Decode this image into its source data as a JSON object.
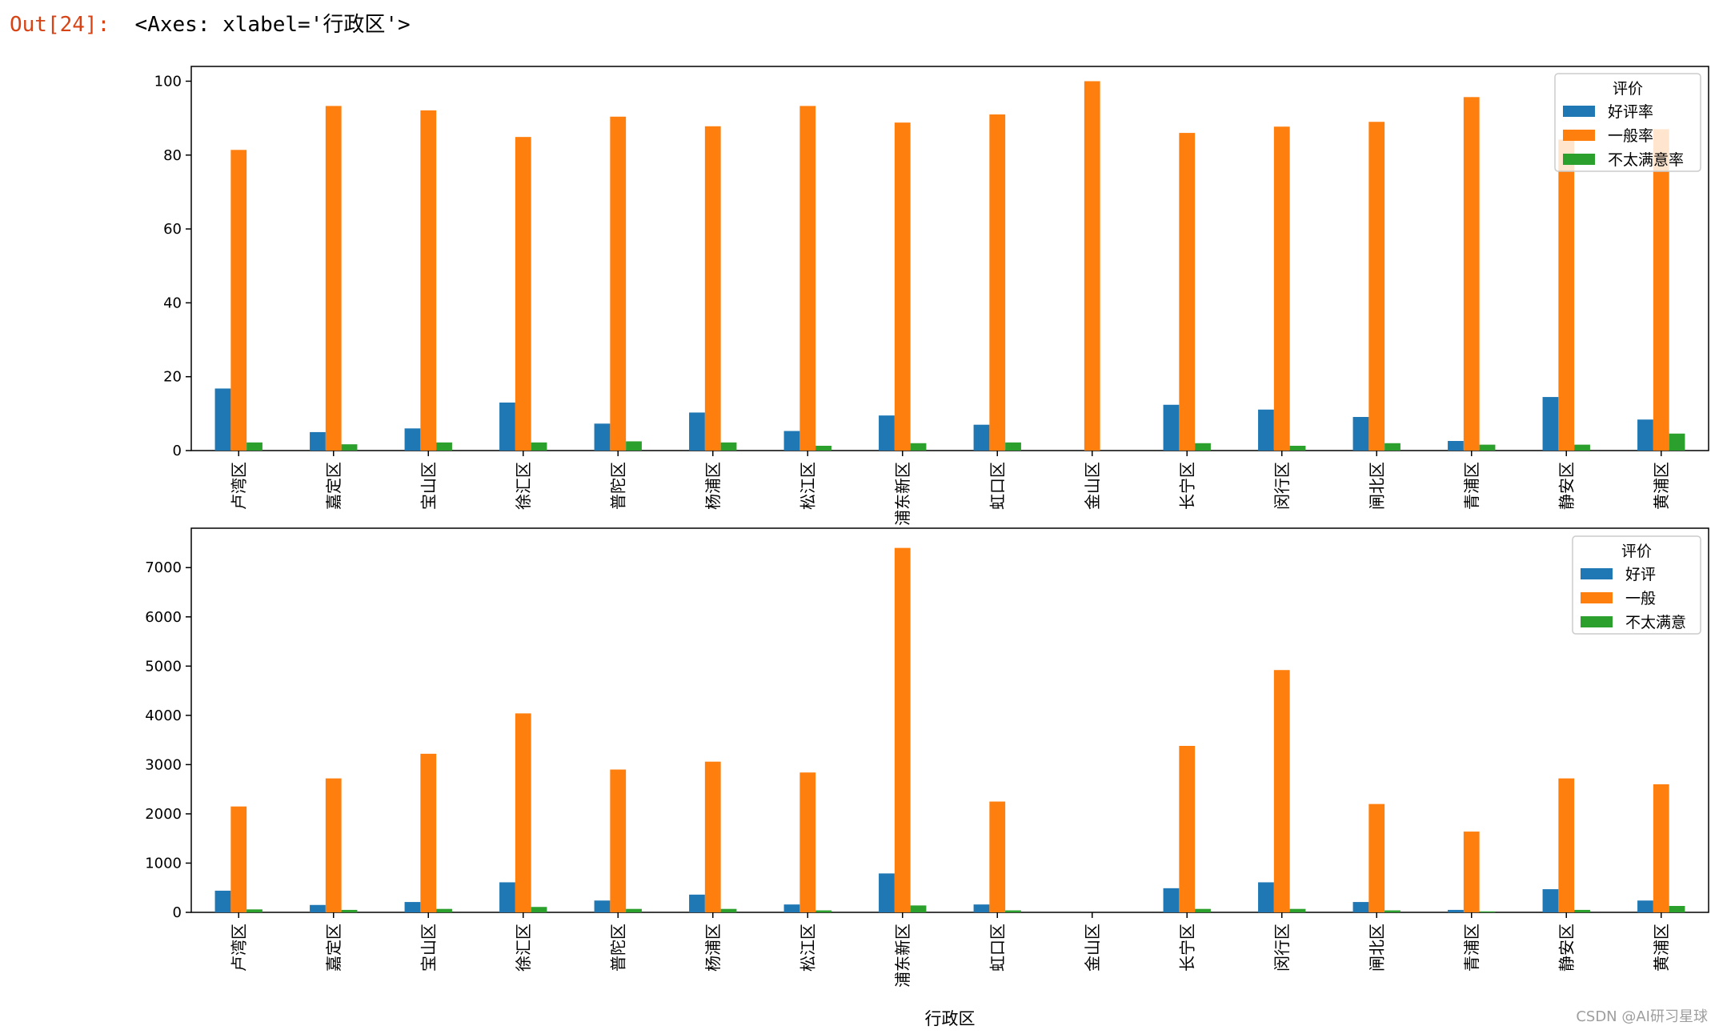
{
  "output": {
    "prompt": "Out[24]:",
    "text": "<Axes: xlabel='行政区'>"
  },
  "watermark": "CSDN @AI研习星球",
  "colors": {
    "series1": "#1f77b4",
    "series2": "#ff7f0e",
    "series3": "#2ca02c"
  },
  "chart_data": [
    {
      "type": "bar",
      "categories": [
        "卢湾区",
        "嘉定区",
        "宝山区",
        "徐汇区",
        "普陀区",
        "杨浦区",
        "松江区",
        "浦东新区",
        "虹口区",
        "金山区",
        "长宁区",
        "闵行区",
        "闸北区",
        "青浦区",
        "静安区",
        "黄浦区"
      ],
      "legend_title": "评价",
      "legend_position": "upper right",
      "ylim": [
        0,
        104
      ],
      "yticks": [
        0,
        20,
        40,
        60,
        80,
        100
      ],
      "series": [
        {
          "name": "好评率",
          "values": [
            16.8,
            5.0,
            6.0,
            13.0,
            7.3,
            10.3,
            5.3,
            9.5,
            7.0,
            0.0,
            12.4,
            11.1,
            9.1,
            2.6,
            14.5,
            8.4
          ]
        },
        {
          "name": "一般率",
          "values": [
            81.4,
            93.3,
            92.1,
            84.9,
            90.4,
            87.8,
            93.3,
            88.8,
            91.0,
            100.0,
            86.0,
            87.7,
            89.0,
            95.7,
            84.2,
            87.0
          ]
        },
        {
          "name": "不太满意率",
          "values": [
            2.2,
            1.7,
            2.2,
            2.2,
            2.5,
            2.2,
            1.3,
            2.0,
            2.2,
            0.0,
            2.0,
            1.3,
            2.0,
            1.6,
            1.6,
            4.6
          ]
        }
      ]
    },
    {
      "type": "bar",
      "categories": [
        "卢湾区",
        "嘉定区",
        "宝山区",
        "徐汇区",
        "普陀区",
        "杨浦区",
        "松江区",
        "浦东新区",
        "虹口区",
        "金山区",
        "长宁区",
        "闵行区",
        "闸北区",
        "青浦区",
        "静安区",
        "黄浦区"
      ],
      "xlabel": "行政区",
      "legend_title": "评价",
      "legend_position": "upper right",
      "ylim": [
        0,
        7800
      ],
      "yticks": [
        0,
        1000,
        2000,
        3000,
        4000,
        5000,
        6000,
        7000
      ],
      "series": [
        {
          "name": "好评",
          "values": [
            440,
            150,
            210,
            610,
            240,
            360,
            160,
            790,
            160,
            0,
            490,
            610,
            210,
            50,
            470,
            240
          ]
        },
        {
          "name": "一般",
          "values": [
            2150,
            2720,
            3220,
            4040,
            2900,
            3060,
            2840,
            7400,
            2250,
            0,
            3380,
            4920,
            2200,
            1640,
            2720,
            2600
          ]
        },
        {
          "name": "不太满意",
          "values": [
            60,
            50,
            70,
            110,
            70,
            70,
            40,
            140,
            40,
            0,
            70,
            70,
            40,
            20,
            50,
            130
          ]
        }
      ]
    }
  ]
}
